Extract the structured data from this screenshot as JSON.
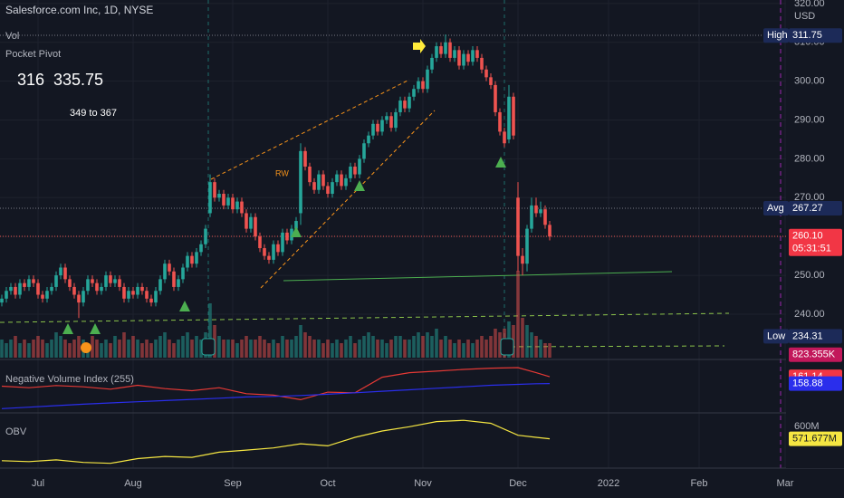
{
  "chart_data": {
    "type": "candlestick",
    "title": "Salesforce.com Inc, 1D, NYSE",
    "legend_texts": [
      "Vol",
      "Pocket Pivot"
    ],
    "annotations": [
      {
        "text": "316"
      },
      {
        "text": "335.75"
      },
      {
        "text": "349 to 367"
      },
      {
        "text": "RW"
      }
    ],
    "up_color": "#26a69a",
    "down_color": "#ef5350",
    "xlim": [
      -0.4,
      173.6
    ],
    "xticks": [
      {
        "value": 8,
        "label": "Jul"
      },
      {
        "value": 29,
        "label": "Aug"
      },
      {
        "value": 51,
        "label": "Sep"
      },
      {
        "value": 72,
        "label": "Oct"
      },
      {
        "value": 93,
        "label": "Nov"
      },
      {
        "value": 114,
        "label": "Dec"
      },
      {
        "value": 134,
        "label": "2022"
      },
      {
        "value": 154,
        "label": "Feb"
      },
      {
        "value": 173,
        "label": "Mar"
      }
    ],
    "ylim": [
      228.8,
      320.9
    ],
    "yticks": [
      {
        "value": 240,
        "label": "240.00"
      },
      {
        "value": 250,
        "label": "250.00"
      },
      {
        "value": 260,
        "label": "260.00"
      },
      {
        "value": 270,
        "label": "270.00"
      },
      {
        "value": 280,
        "label": "280.00"
      },
      {
        "value": 290,
        "label": "290.00"
      },
      {
        "value": 300,
        "label": "300.00"
      },
      {
        "value": 310,
        "label": "310.00"
      },
      {
        "value": 320,
        "label": "320.00"
      }
    ],
    "currency": "USD",
    "grid": true,
    "open": [
      243,
      244,
      246,
      247,
      245,
      248,
      247,
      249,
      248,
      245,
      244,
      246,
      247,
      250,
      252,
      249,
      247,
      245,
      243,
      246,
      249,
      248,
      246,
      247,
      250,
      248,
      249,
      247,
      244,
      246,
      245,
      247,
      246,
      244,
      243,
      246,
      249,
      253,
      251,
      247,
      249,
      252,
      255,
      253,
      256,
      258,
      266,
      274,
      270,
      271,
      268,
      270,
      267,
      269,
      266,
      262,
      265,
      260,
      257,
      255,
      254,
      258,
      256,
      261,
      259,
      262,
      266,
      282,
      278,
      274,
      272,
      276,
      273,
      271,
      274,
      276,
      273,
      275,
      278,
      276,
      280,
      284,
      286,
      289,
      287,
      290,
      291,
      288,
      292,
      295,
      293,
      296,
      298,
      300,
      298,
      303,
      306,
      309,
      307,
      310,
      306,
      308,
      304,
      307,
      305,
      308,
      306,
      303,
      301,
      299,
      292,
      287,
      285,
      296,
      270,
      255,
      253,
      262,
      268,
      266,
      267,
      263
    ],
    "high": [
      245,
      247,
      248,
      248,
      249,
      249,
      250,
      250,
      249,
      246,
      247,
      248,
      251,
      253,
      253,
      250,
      248,
      246,
      247,
      250,
      250,
      249,
      248,
      251,
      251,
      250,
      250,
      248,
      247,
      247,
      248,
      248,
      247,
      245,
      247,
      250,
      254,
      254,
      252,
      250,
      253,
      256,
      256,
      257,
      259,
      263,
      276,
      275,
      272,
      272,
      271,
      271,
      270,
      270,
      267,
      266,
      266,
      261,
      258,
      256,
      259,
      259,
      262,
      262,
      263,
      265,
      284,
      283,
      279,
      275,
      277,
      277,
      274,
      275,
      277,
      277,
      276,
      279,
      279,
      281,
      285,
      287,
      290,
      290,
      291,
      292,
      292,
      293,
      296,
      296,
      297,
      299,
      301,
      301,
      304,
      307,
      310,
      310,
      312,
      311,
      309,
      309,
      308,
      308,
      309,
      309,
      307,
      304,
      302,
      300,
      293,
      288,
      299,
      297,
      274,
      257,
      263,
      270,
      270,
      269,
      268,
      264
    ],
    "low": [
      242,
      243,
      245,
      244,
      244,
      246,
      246,
      247,
      244,
      243,
      243,
      245,
      246,
      249,
      248,
      246,
      244,
      239,
      242,
      245,
      247,
      245,
      245,
      246,
      247,
      247,
      246,
      243,
      243,
      244,
      244,
      245,
      243,
      242,
      242,
      245,
      248,
      250,
      246,
      246,
      248,
      251,
      252,
      252,
      255,
      257,
      265,
      269,
      269,
      267,
      267,
      266,
      266,
      265,
      261,
      261,
      259,
      256,
      254,
      253,
      253,
      255,
      255,
      258,
      258,
      261,
      263,
      277,
      273,
      271,
      271,
      272,
      270,
      270,
      273,
      272,
      272,
      274,
      275,
      275,
      279,
      283,
      285,
      286,
      286,
      289,
      287,
      287,
      291,
      292,
      292,
      295,
      297,
      297,
      297,
      302,
      305,
      306,
      306,
      305,
      305,
      303,
      303,
      304,
      304,
      305,
      302,
      300,
      298,
      291,
      286,
      283,
      284,
      285,
      251,
      250,
      251,
      261,
      265,
      265,
      262,
      259
    ],
    "close": [
      244,
      246,
      247,
      245,
      248,
      247,
      249,
      248,
      245,
      244,
      246,
      247,
      250,
      252,
      249,
      247,
      245,
      243,
      246,
      249,
      248,
      246,
      247,
      250,
      248,
      249,
      247,
      244,
      246,
      245,
      247,
      246,
      244,
      243,
      246,
      249,
      253,
      251,
      247,
      249,
      252,
      255,
      253,
      256,
      258,
      262,
      274,
      270,
      271,
      268,
      270,
      267,
      269,
      266,
      262,
      265,
      260,
      257,
      255,
      254,
      258,
      256,
      261,
      259,
      262,
      264,
      282,
      278,
      274,
      272,
      276,
      273,
      271,
      274,
      276,
      273,
      275,
      278,
      276,
      280,
      284,
      286,
      289,
      287,
      290,
      291,
      288,
      292,
      295,
      293,
      296,
      298,
      300,
      298,
      303,
      306,
      309,
      307,
      310,
      306,
      308,
      304,
      307,
      305,
      308,
      306,
      303,
      301,
      299,
      292,
      287,
      284,
      296,
      286,
      255,
      253,
      262,
      268,
      266,
      267,
      263,
      260
    ],
    "volume": [
      5,
      4,
      5,
      6,
      4,
      5,
      4,
      5,
      6,
      5,
      4,
      5,
      7,
      6,
      5,
      4,
      5,
      6,
      5,
      4,
      6,
      5,
      4,
      5,
      4,
      6,
      5,
      7,
      5,
      6,
      5,
      4,
      5,
      4,
      5,
      6,
      7,
      5,
      4,
      5,
      6,
      7,
      5,
      6,
      5,
      7,
      15,
      9,
      6,
      5,
      5,
      5,
      4,
      5,
      6,
      5,
      5,
      6,
      5,
      4,
      5,
      4,
      6,
      5,
      5,
      6,
      9,
      7,
      6,
      5,
      5,
      4,
      5,
      4,
      5,
      4,
      5,
      6,
      4,
      5,
      6,
      7,
      6,
      5,
      5,
      4,
      5,
      6,
      6,
      5,
      5,
      6,
      7,
      6,
      7,
      6,
      8,
      5,
      6,
      5,
      4,
      5,
      4,
      5,
      4,
      5,
      6,
      5,
      6,
      8,
      7,
      8,
      10,
      9,
      24,
      11,
      9,
      7,
      6,
      5,
      4,
      4
    ],
    "volume_ylim": [
      0,
      98.75
    ],
    "badges": [
      {
        "label": "High",
        "value": 311.75,
        "axis": "price",
        "color": "#1c2a58",
        "text_color": "#ffffff"
      },
      {
        "label": "Avg",
        "value": 267.27,
        "axis": "price",
        "color": "#1c2a58",
        "text_color": "#ffffff"
      },
      {
        "value": {
          "value": 260.1,
          "label": "260.10"
        },
        "sublabel": "05:31:51",
        "axis": "price",
        "color": "#f23645",
        "text_color": "#ffffff"
      },
      {
        "label": "Low",
        "value": 234.31,
        "axis": "price",
        "color": "#1c2a58",
        "text_color": "#ffffff"
      },
      {
        "value": {
          "value": 0.823355,
          "label": "823.355K"
        },
        "axis": "volume",
        "color": "#c2185b",
        "text_color": "#ffffff"
      }
    ],
    "panels": [
      {
        "title": "Negative Volume Index (255)",
        "x": [
          0,
          6,
          12,
          18,
          24,
          30,
          36,
          42,
          48,
          54,
          60,
          66,
          72,
          78,
          84,
          90,
          96,
          102,
          108,
          114,
          118,
          121
        ],
        "ylim": [
          150,
          166
        ],
        "series": [
          {
            "color": "#e53935",
            "values": [
              158,
              157.5,
              158.2,
              157.8,
              157,
              158.3,
              157.2,
              156.5,
              157.5,
              155.5,
              155,
              153.5,
              156,
              155.8,
              161,
              162.5,
              163,
              163.6,
              164,
              164.2,
              162.5,
              161.14
            ]
          },
          {
            "color": "#2a2eec",
            "values": [
              150.5,
              151,
              151.5,
              152,
              152.4,
              152.8,
              153.2,
              153.6,
              154,
              154.4,
              154.6,
              154.9,
              155.3,
              155.8,
              156.3,
              156.8,
              157.3,
              157.8,
              158.3,
              158.6,
              158.8,
              158.88
            ]
          }
        ],
        "badges": [
          {
            "value": 161.14,
            "color": "#f23645",
            "text_color": "#ffffff"
          },
          {
            "value": 158.88,
            "color": "#2a2eec",
            "text_color": "#ffffff"
          }
        ]
      },
      {
        "title": "OBV",
        "x": [
          0,
          6,
          12,
          18,
          24,
          30,
          36,
          42,
          48,
          54,
          60,
          66,
          72,
          78,
          84,
          90,
          96,
          102,
          108,
          114,
          118,
          121
        ],
        "ylim": [
          509,
          624
        ],
        "yticks": [
          {
            "value": 600,
            "label": "600M"
          }
        ],
        "series": [
          {
            "color": "#f5e642",
            "values": [
              520,
              518,
              522,
              516,
              514,
              525,
              530,
              528,
              540,
              545,
              550,
              560,
              555,
              575,
              590,
              600,
              612,
              615,
              608,
              580,
              575,
              571.677
            ]
          }
        ],
        "badges": [
          {
            "value": {
              "value": 571.677,
              "label": "571.677M"
            },
            "color": "#f5e642",
            "text_color": "#131722"
          }
        ]
      }
    ]
  }
}
